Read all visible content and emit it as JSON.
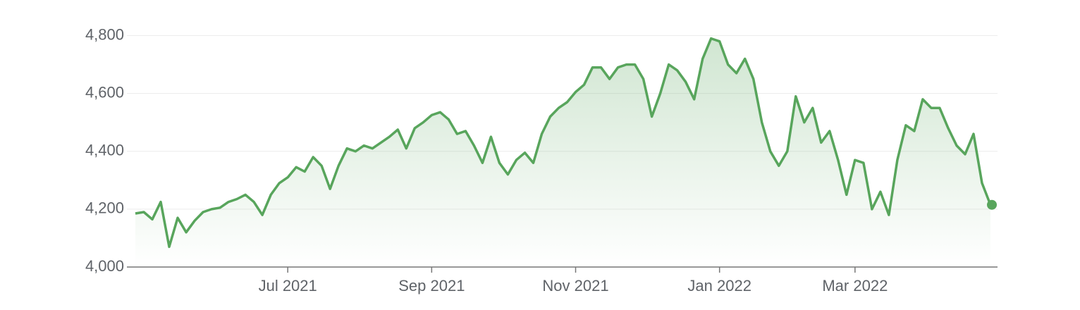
{
  "chart_data": {
    "type": "line",
    "categories": [
      null,
      null,
      null,
      null,
      null,
      null,
      null,
      null,
      null,
      null,
      null,
      null,
      null,
      null,
      null,
      null,
      null,
      null,
      "Jul 2021",
      null,
      null,
      null,
      null,
      null,
      null,
      null,
      null,
      null,
      null,
      null,
      null,
      null,
      null,
      null,
      null,
      "Sep 2021",
      null,
      null,
      null,
      null,
      null,
      null,
      null,
      null,
      null,
      null,
      null,
      null,
      null,
      null,
      null,
      null,
      "Nov 2021",
      null,
      null,
      null,
      null,
      null,
      null,
      null,
      null,
      null,
      null,
      null,
      null,
      null,
      null,
      null,
      null,
      "Jan 2022",
      null,
      null,
      null,
      null,
      null,
      null,
      null,
      null,
      null,
      null,
      null,
      null,
      null,
      null,
      null,
      "Mar 2022",
      null,
      null,
      null,
      null,
      null,
      null,
      null,
      null,
      null,
      null,
      null,
      null,
      null,
      null,
      null,
      null
    ],
    "values": [
      4185,
      4190,
      4165,
      4225,
      4070,
      4170,
      4120,
      4160,
      4190,
      4200,
      4205,
      4225,
      4235,
      4250,
      4225,
      4180,
      4250,
      4290,
      4310,
      4345,
      4330,
      4380,
      4350,
      4270,
      4350,
      4410,
      4400,
      4420,
      4410,
      4430,
      4450,
      4475,
      4410,
      4480,
      4500,
      4525,
      4535,
      4510,
      4460,
      4470,
      4420,
      4360,
      4450,
      4360,
      4320,
      4370,
      4395,
      4360,
      4460,
      4520,
      4550,
      4570,
      4605,
      4630,
      4690,
      4690,
      4650,
      4690,
      4700,
      4700,
      4650,
      4520,
      4600,
      4700,
      4680,
      4640,
      4580,
      4720,
      4790,
      4780,
      4700,
      4670,
      4720,
      4650,
      4500,
      4400,
      4350,
      4400,
      4590,
      4500,
      4550,
      4430,
      4470,
      4370,
      4250,
      4370,
      4360,
      4200,
      4260,
      4180,
      4370,
      4490,
      4470,
      4580,
      4550,
      4550,
      4480,
      4420,
      4390,
      4460,
      4290,
      4215
    ],
    "color": "#58a55c",
    "ylim": [
      4000,
      4850
    ],
    "yticks": [
      {
        "value": 4000,
        "label": "4,000"
      },
      {
        "value": 4200,
        "label": "4,200"
      },
      {
        "value": 4400,
        "label": "4,400"
      },
      {
        "value": 4600,
        "label": "4,600"
      },
      {
        "value": 4800,
        "label": "4,800"
      }
    ],
    "grid": true
  }
}
